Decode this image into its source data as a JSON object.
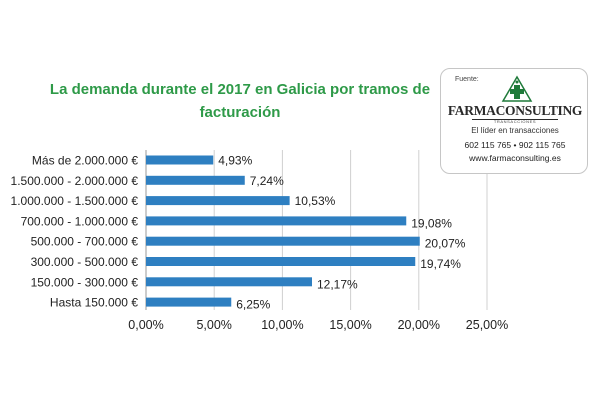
{
  "chart_data": {
    "type": "bar",
    "orientation": "horizontal",
    "title": "La demanda durante el 2017 en Galicia por tramos de facturación",
    "categories": [
      "Más de 2.000.000 €",
      "1.500.000 - 2.000.000 €",
      "1.000.000 - 1.500.000 €",
      "700.000 - 1.000.000 €",
      "500.000 - 700.000 €",
      "300.000 - 500.000 €",
      "150.000 - 300.000 €",
      "Hasta 150.000 €"
    ],
    "values": [
      4.93,
      7.24,
      10.53,
      19.08,
      20.07,
      19.74,
      12.17,
      6.25
    ],
    "data_labels": [
      "4,93%",
      "7,24%",
      "10,53%",
      "19,08%",
      "20,07%",
      "19,74%",
      "12,17%",
      "6,25%"
    ],
    "x_ticks": [
      "0,00%",
      "5,00%",
      "10,00%",
      "15,00%",
      "20,00%",
      "25,00%"
    ],
    "xlim": [
      0,
      25
    ],
    "xlabel": "",
    "ylabel": "",
    "grid": "vertical",
    "bar_color": "#2e7fc1"
  },
  "source_box": {
    "label": "Fuente:",
    "brand": "FARMACONSULTING",
    "brand_sub": "TRANSACCIONES",
    "tagline": "El líder en transacciones",
    "phones": "602 115 765 •   902 115 765",
    "website": "www.farmaconsulting.es"
  },
  "colors": {
    "title": "#2e9a48",
    "bars": "#2e7fc1",
    "grid": "#d0d0d0",
    "logo": "#1f7a3a"
  }
}
